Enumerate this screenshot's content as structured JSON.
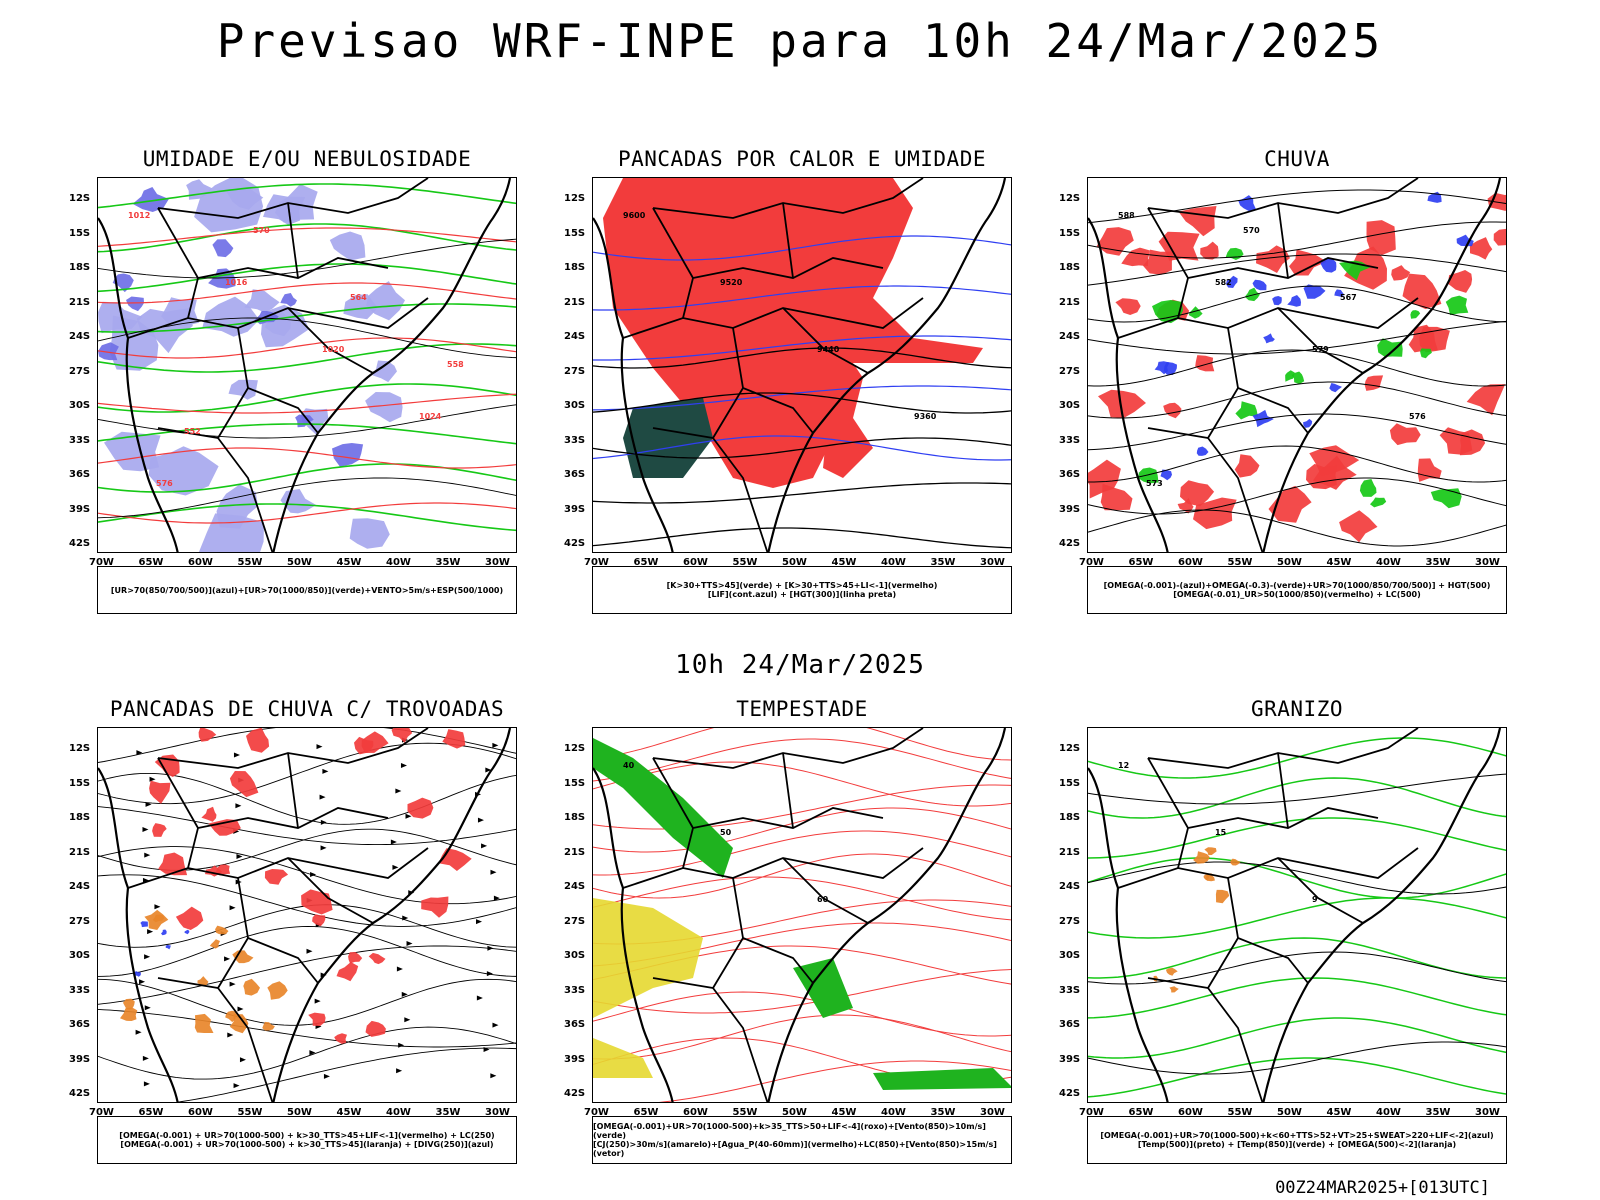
{
  "header": {
    "title": "Previsao WRF-INPE  para 10h 24/Mar/2025"
  },
  "middle_label": "10h 24/Mar/2025",
  "footer": "00Z24MAR2025+[013UTC]",
  "axes": {
    "lat_labels": [
      "12S",
      "15S",
      "18S",
      "21S",
      "24S",
      "27S",
      "30S",
      "33S",
      "36S",
      "39S",
      "42S"
    ],
    "lon_labels": [
      "70W",
      "65W",
      "60W",
      "55W",
      "50W",
      "45W",
      "40W",
      "35W",
      "30W"
    ]
  },
  "panels": [
    {
      "title": "UMIDADE E/OU NEBULOSIDADE",
      "legend": [
        "[UR>70(850/700/500)](azul)+[UR>70(1000/850)](verde)+VENTO>5m/s+ESP(500/1000)"
      ],
      "labels": [
        "1012",
        "1016",
        "1020",
        "1024",
        "576",
        "570",
        "564",
        "558",
        "552"
      ]
    },
    {
      "title": "PANCADAS POR CALOR E UMIDADE",
      "legend": [
        "[K>30+TTS>45](verde) + [K>30+TTS>45+LI<-1](vermelho)",
        "[LIF](cont.azul) + [HGT(300)](linha preta)"
      ],
      "labels": [
        "9600",
        "9520",
        "9440",
        "9360"
      ]
    },
    {
      "title": "CHUVA",
      "legend": [
        "[OMEGA(-0.001)-(azul)+OMEGA(-0.3)-(verde)+UR>70(1000/850/700/500)] + HGT(500)",
        "[OMEGA(-0.01)_UR>50(1000/850)(vermelho) + LC(500)"
      ],
      "labels": [
        "588",
        "582",
        "579",
        "576",
        "573",
        "570",
        "567"
      ]
    },
    {
      "title": "PANCADAS DE CHUVA C/ TROVOADAS",
      "legend": [
        "[OMEGA(-0.001) + UR>70(1000-500) + k>30_TTS>45+LIF<-1](vermelho) + LC(250)",
        "[OMEGA(-0.001) + UR>70(1000-500) + k>30_TTS>45](laranja) + [DIVG(250)](azul)"
      ],
      "labels": []
    },
    {
      "title": "TEMPESTADE",
      "legend": [
        "[OMEGA(-0.001)+UR>70(1000-500)+k>35_TTS>50+LIF<-4](roxo)+[Vento(850)>10m/s](verde)",
        "[CJ(250)>30m/s](amarelo)+[Agua_P(40-60mm)](vermelho)+LC(850)+[Vento(850)>15m/s](vetor)"
      ],
      "labels": [
        "40",
        "50",
        "60"
      ]
    },
    {
      "title": "GRANIZO",
      "legend": [
        "[OMEGA(-0.001)+UR>70(1000-500)+k<60+TTS>52+VT>25+SWEAT>220+LIF<-2](azul)",
        "[Temp(500)](preto) + [Temp(850)](verde) + [OMEGA(500)<-2](laranja)"
      ],
      "labels": [
        "12",
        "15",
        "9"
      ]
    }
  ],
  "colors": {
    "blue": "#2f3ff2",
    "green": "#16c816",
    "red": "#f23c3c",
    "orange": "#e8862a",
    "yellow": "#e6d830",
    "darkteal": "#1f4a43",
    "lavender": "#a7a8ee",
    "purple": "#b030e0"
  }
}
